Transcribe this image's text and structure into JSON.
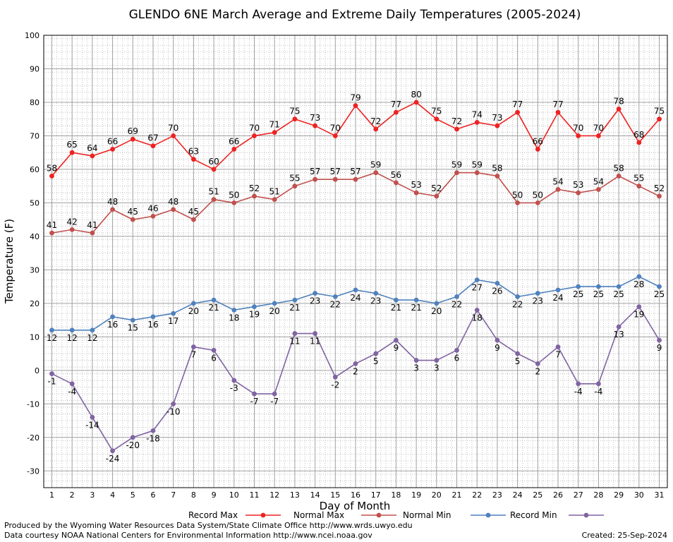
{
  "chart_data": {
    "type": "line",
    "title": "GLENDO 6NE March Average and Extreme Daily Temperatures (2005-2024)",
    "xlabel": "Day of Month",
    "ylabel": "Temperature (F)",
    "x": [
      1,
      2,
      3,
      4,
      5,
      6,
      7,
      8,
      9,
      10,
      11,
      12,
      13,
      14,
      15,
      16,
      17,
      18,
      19,
      20,
      21,
      22,
      23,
      24,
      25,
      26,
      27,
      28,
      29,
      30,
      31
    ],
    "xlim": [
      0.6,
      31.4
    ],
    "ylim": [
      -35,
      100
    ],
    "yticks": [
      -30,
      -20,
      -10,
      0,
      10,
      20,
      30,
      40,
      50,
      60,
      70,
      80,
      90,
      100
    ],
    "grid": true,
    "legend_position": "bottom",
    "series": [
      {
        "name": "Record Max",
        "color": "#ee2222",
        "values": [
          58,
          65,
          64,
          66,
          69,
          67,
          70,
          63,
          60,
          66,
          70,
          71,
          75,
          73,
          70,
          79,
          72,
          77,
          80,
          75,
          72,
          74,
          73,
          77,
          66,
          77,
          70,
          70,
          78,
          68,
          75
        ]
      },
      {
        "name": "Normal Max",
        "color": "#c0504d",
        "values": [
          41,
          42,
          41,
          48,
          45,
          46,
          48,
          45,
          51,
          50,
          52,
          51,
          55,
          57,
          57,
          57,
          59,
          56,
          53,
          52,
          59,
          59,
          58,
          50,
          50,
          54,
          53,
          54,
          58,
          55,
          52
        ]
      },
      {
        "name": "Normal Min",
        "color": "#4f81bd",
        "values": [
          12,
          12,
          12,
          16,
          15,
          16,
          17,
          20,
          21,
          18,
          19,
          20,
          21,
          23,
          22,
          24,
          23,
          21,
          21,
          20,
          22,
          27,
          26,
          22,
          23,
          24,
          25,
          25,
          25,
          28,
          25
        ]
      },
      {
        "name": "Record Min",
        "color": "#8064a2",
        "values": [
          -1,
          -4,
          -14,
          -24,
          -20,
          -18,
          -10,
          7,
          6,
          -3,
          -7,
          -7,
          11,
          11,
          -2,
          2,
          5,
          9,
          3,
          3,
          6,
          18,
          9,
          5,
          2,
          7,
          -4,
          -4,
          13,
          19,
          9
        ]
      }
    ]
  },
  "footer": {
    "produced_by": "Produced by the Wyoming Water Resources Data System/State Climate Office http://www.wrds.uwyo.edu",
    "courtesy": "Data courtesy NOAA National Centers for Environmental Information http://www.ncei.noaa.gov",
    "created": "Created:  25-Sep-2024"
  }
}
